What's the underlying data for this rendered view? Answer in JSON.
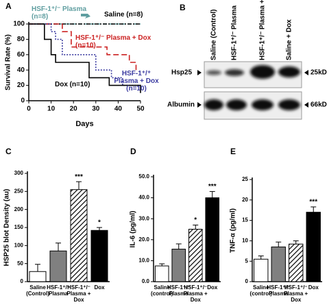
{
  "chart_data": [
    {
      "type": "line",
      "step": true,
      "panel": "A",
      "ylabel": "Survival Rate (%)",
      "xlabel": "Days",
      "xlim": [
        0,
        50
      ],
      "xticks": [
        0,
        10,
        20,
        30,
        40,
        50
      ],
      "ylim": [
        0,
        100
      ],
      "yticks": [
        0,
        20,
        40,
        60,
        80,
        100
      ],
      "series": [
        {
          "name": "HSF-1⁺/⁻ Plasma (n=8)",
          "color": "#5f9ea0",
          "dash": "6 3",
          "x": [
            0,
            50
          ],
          "values": [
            100,
            100
          ]
        },
        {
          "name": "Saline (n=8)",
          "color": "#000000",
          "dash": "6 2 2 2",
          "x": [
            0,
            50
          ],
          "values": [
            100,
            100
          ]
        },
        {
          "name": "HSF-1⁺/⁻ Plasma + Dox (n=10)",
          "color": "#cc2222",
          "dash": "8 4",
          "x": [
            0,
            15,
            19,
            35,
            45,
            48
          ],
          "values": [
            100,
            90,
            70,
            60,
            50,
            40
          ]
        },
        {
          "name": "HSF-1⁺/⁺ Plasma + Dox (n=10)",
          "color": "#3a3aa0",
          "dash": "2 2",
          "x": [
            0,
            10,
            12,
            15,
            30,
            37,
            42,
            50
          ],
          "values": [
            100,
            90,
            80,
            60,
            40,
            30,
            20,
            20
          ]
        },
        {
          "name": "Dox (n=10)",
          "color": "#000000",
          "dash": "none",
          "x": [
            0,
            7,
            10,
            12,
            27,
            36,
            50
          ],
          "values": [
            100,
            80,
            60,
            50,
            30,
            20,
            10
          ]
        }
      ]
    },
    {
      "type": "bar",
      "panel": "C",
      "ylabel": "HSP25 blot Density (au)",
      "categories": [
        "Saline (Control)",
        "HSF-1⁺/⁻ Plasma",
        "HSF-1⁺/⁻ Plasma + Dox",
        "Dox"
      ],
      "values": [
        28,
        85,
        255,
        142
      ],
      "errors": [
        20,
        22,
        22,
        8
      ],
      "annotations": [
        null,
        null,
        "***",
        "*"
      ],
      "colors": [
        "#ffffff",
        "#808080",
        "hatched",
        "#000000"
      ],
      "ylim": [
        0,
        300
      ],
      "yticks": [
        0,
        50,
        100,
        150,
        200,
        250,
        300
      ]
    },
    {
      "type": "bar",
      "panel": "D",
      "ylabel": "IL-6 (pg/ml)",
      "categories": [
        "Saline (control)",
        "HSF-1⁺/⁻ Plasma",
        "HSF-1⁺/⁻ Plasma + Dox",
        "Dox"
      ],
      "values": [
        7.5,
        15.5,
        25,
        40
      ],
      "errors": [
        1,
        2.5,
        2,
        3
      ],
      "annotations": [
        null,
        null,
        "*",
        "***"
      ],
      "colors": [
        "#ffffff",
        "#808080",
        "hatched",
        "#000000"
      ],
      "ylim": [
        0,
        50
      ],
      "yticks": [
        {
          "value": 0,
          "label": "0.0"
        },
        {
          "value": 10,
          "label": "10.0"
        },
        {
          "value": 20,
          "label": "20.0"
        },
        {
          "value": 30,
          "label": "30.0"
        },
        {
          "value": 40,
          "label": "40.0"
        },
        {
          "value": 50,
          "label": "50.0"
        }
      ]
    },
    {
      "type": "bar",
      "panel": "E",
      "ylabel": "TNF-α (pg/ml)",
      "categories": [
        "Saline (control)",
        "HSF-1⁺/⁻ Plasma",
        "HSF-1⁺/⁻ Plasma + Dox",
        "Dox"
      ],
      "values": [
        5.5,
        8.5,
        9.2,
        17
      ],
      "errors": [
        0.8,
        1.2,
        0.8,
        1.3
      ],
      "annotations": [
        null,
        null,
        null,
        "***"
      ],
      "colors": [
        "#ffffff",
        "#808080",
        "hatched",
        "#000000"
      ],
      "ylim": [
        0,
        25
      ],
      "yticks": [
        0,
        5,
        10,
        15,
        20,
        25
      ]
    }
  ],
  "blot": {
    "panel": "B",
    "lanes": [
      "Saline (Control)",
      "HSF-1⁺/⁻ Plasma",
      "HSF-1⁺/⁻ Plasma + Dox",
      "Saline + Dox"
    ],
    "rows": [
      {
        "label": "Hsp25",
        "size": "25kD"
      },
      {
        "label": "Albumin",
        "size": "66kD"
      }
    ]
  }
}
